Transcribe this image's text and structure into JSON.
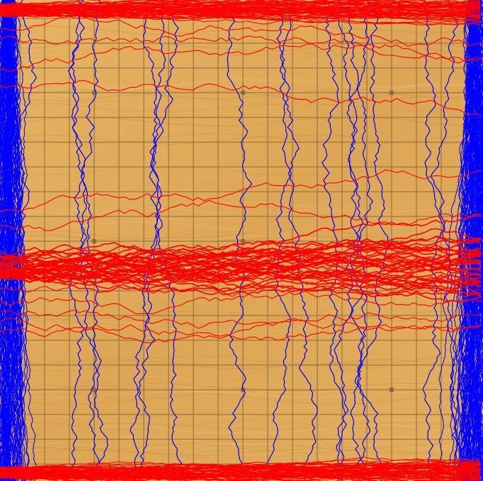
{
  "board": {
    "size": 19,
    "star_points": [
      [
        3,
        3
      ],
      [
        9,
        3
      ],
      [
        15,
        3
      ],
      [
        3,
        9
      ],
      [
        9,
        9
      ],
      [
        15,
        9
      ],
      [
        3,
        15
      ],
      [
        9,
        15
      ],
      [
        15,
        15
      ]
    ],
    "colors": {
      "wood_light": "#e8b96a",
      "wood_dark": "#d49a48",
      "grid_line": "#8a6a3a",
      "star_point": "#8a6a3a",
      "player_blue": "#0000ff",
      "player_red": "#ff0000"
    }
  },
  "players": {
    "blue": {
      "color_name": "blue",
      "edges": [
        "left",
        "right"
      ],
      "direction": "vertical"
    },
    "red": {
      "color_name": "red",
      "edges": [
        "top",
        "bottom"
      ],
      "direction": "horizontal"
    }
  }
}
